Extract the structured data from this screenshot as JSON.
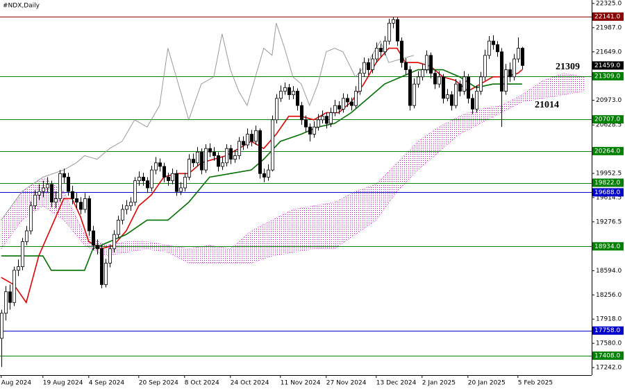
{
  "chart_data": {
    "type": "candlestick",
    "title": "#NDX,Daily",
    "x": [
      0,
      1,
      2,
      3,
      4,
      5,
      6,
      7,
      8,
      9,
      10,
      11,
      12,
      13,
      14,
      15,
      16,
      17,
      18,
      19,
      20,
      21,
      22,
      23,
      24,
      25,
      26,
      27,
      28,
      29,
      30,
      31,
      32,
      33,
      34,
      35,
      36,
      37,
      38,
      39,
      40,
      41,
      42,
      43,
      44,
      45,
      46,
      47,
      48,
      49,
      50,
      51,
      52,
      53,
      54,
      55,
      56,
      57,
      58,
      59,
      60,
      61,
      62,
      63,
      64,
      65,
      66,
      67,
      68,
      69,
      70,
      71,
      72,
      73,
      74,
      75,
      76,
      77,
      78,
      79,
      80,
      81,
      82,
      83,
      84,
      85,
      86,
      87,
      88,
      89,
      90,
      91,
      92,
      93,
      94,
      95,
      96,
      97,
      98,
      99,
      100,
      101,
      102,
      103,
      104,
      105,
      106,
      107,
      108,
      109,
      110,
      111,
      112,
      113,
      114,
      115,
      116,
      117,
      118,
      119,
      120,
      121,
      122,
      123,
      124,
      125
    ],
    "open": [
      17650,
      18000,
      18300,
      18150,
      18600,
      18650,
      19000,
      19150,
      19500,
      19650,
      19700,
      19750,
      19800,
      19550,
      19600,
      19950,
      19900,
      19700,
      19600,
      19550,
      19450,
      19600,
      19150,
      18950,
      18900,
      18400,
      18700,
      18900,
      19100,
      19300,
      19450,
      19500,
      19550,
      19850,
      19900,
      19850,
      19750,
      20000,
      20100,
      20050,
      19900,
      19850,
      19950,
      19700,
      19750,
      19900,
      20150,
      20100,
      20250,
      20000,
      20300,
      20250,
      20200,
      20050,
      20100,
      20300,
      20150,
      20200,
      20400,
      20350,
      20500,
      20400,
      20550,
      19950,
      19900,
      20000,
      20700,
      21000,
      21100,
      21150,
      21050,
      21100,
      20900,
      20700,
      20600,
      20500,
      20600,
      20700,
      20750,
      20650,
      20800,
      20900,
      20850,
      21000,
      20950,
      20900,
      21100,
      21350,
      21500,
      21400,
      21550,
      21700,
      21650,
      21800,
      22050,
      22100,
      21800,
      21500,
      21400,
      20900,
      21200,
      21300,
      21400,
      21600,
      21350,
      21200,
      21300,
      21000,
      21050,
      20900,
      21200,
      21100,
      21300,
      21000,
      20850,
      21100,
      21300,
      21600,
      21800,
      21750,
      21650,
      21100,
      21400,
      21300,
      21550,
      21700
    ],
    "high": [
      18050,
      18380,
      18400,
      18650,
      18750,
      19050,
      19220,
      19560,
      19720,
      19800,
      19850,
      19900,
      19850,
      19700,
      20000,
      20020,
      19960,
      19780,
      19680,
      19620,
      19680,
      19640,
      19220,
      19030,
      18950,
      18760,
      18960,
      19160,
      19360,
      19520,
      19580,
      19620,
      19900,
      19980,
      19960,
      19900,
      20060,
      20180,
      20160,
      20100,
      19960,
      20020,
      20000,
      19830,
      19960,
      20220,
      20230,
      20320,
      20300,
      20360,
      20370,
      20320,
      20250,
      20180,
      20360,
      20350,
      20280,
      20460,
      20470,
      20580,
      20560,
      20620,
      20580,
      20020,
      20080,
      20760,
      21060,
      21180,
      21220,
      21200,
      21170,
      21140,
      20950,
      20760,
      20650,
      20680,
      20780,
      20830,
      20800,
      20870,
      20980,
      20960,
      21070,
      21060,
      21010,
      21170,
      21420,
      21570,
      21560,
      21620,
      21780,
      21760,
      21870,
      22110,
      22140,
      22130,
      21850,
      21560,
      21450,
      21280,
      21380,
      21480,
      21670,
      21640,
      21400,
      21380,
      21340,
      21130,
      21100,
      21270,
      21250,
      21380,
      21340,
      21060,
      21180,
      21370,
      21680,
      21870,
      21880,
      21800,
      21700,
      21480,
      21500,
      21620,
      21850,
      21720
    ],
    "low": [
      17250,
      17900,
      18050,
      18100,
      18520,
      18600,
      18950,
      19100,
      19450,
      19580,
      19620,
      19680,
      19480,
      19470,
      19560,
      19820,
      19640,
      19520,
      19470,
      19380,
      19400,
      19080,
      18880,
      18820,
      18350,
      18360,
      18640,
      18850,
      19050,
      19240,
      19380,
      19430,
      19500,
      19780,
      19780,
      19680,
      19700,
      19940,
      19980,
      19830,
      19780,
      19800,
      19640,
      19650,
      19700,
      19860,
      20040,
      20050,
      19940,
      19960,
      20180,
      20130,
      19980,
      20000,
      20050,
      20080,
      20100,
      20150,
      20280,
      20300,
      20330,
      20350,
      19880,
      19830,
      19850,
      19980,
      20650,
      20950,
      21050,
      20980,
      20990,
      20830,
      20630,
      20530,
      20400,
      20450,
      20550,
      20650,
      20580,
      20600,
      20750,
      20780,
      20800,
      20880,
      20830,
      20860,
      21050,
      21300,
      21330,
      21350,
      21500,
      21580,
      21600,
      21750,
      21980,
      21730,
      21430,
      21330,
      20830,
      20860,
      21150,
      21250,
      21350,
      21280,
      21130,
      21150,
      20930,
      20960,
      20830,
      20860,
      21030,
      21050,
      20930,
      20780,
      20800,
      21050,
      21250,
      21550,
      21680,
      21580,
      20600,
      21050,
      21230,
      21250,
      21500,
      21400
    ],
    "close": [
      18000,
      18300,
      18150,
      18600,
      18650,
      19000,
      19150,
      19500,
      19650,
      19700,
      19750,
      19800,
      19550,
      19600,
      19950,
      19900,
      19700,
      19600,
      19550,
      19450,
      19600,
      19150,
      18950,
      18900,
      18400,
      18700,
      18900,
      19100,
      19300,
      19450,
      19500,
      19550,
      19850,
      19900,
      19850,
      19750,
      20000,
      20100,
      20050,
      19900,
      19850,
      19950,
      19700,
      19750,
      19900,
      20150,
      20100,
      20250,
      20000,
      20300,
      20250,
      20200,
      20050,
      20100,
      20300,
      20150,
      20200,
      20400,
      20350,
      20500,
      20400,
      20550,
      19950,
      19900,
      20000,
      20700,
      21000,
      21100,
      21150,
      21050,
      21100,
      20900,
      20700,
      20600,
      20500,
      20600,
      20700,
      20750,
      20650,
      20800,
      20900,
      20850,
      21000,
      20950,
      20900,
      21100,
      21350,
      21500,
      21400,
      21550,
      21700,
      21650,
      21800,
      22050,
      22100,
      21800,
      21500,
      21400,
      20900,
      21200,
      21300,
      21400,
      21600,
      21350,
      21200,
      21300,
      21000,
      21050,
      20900,
      21200,
      21100,
      21300,
      21000,
      20850,
      21100,
      21300,
      21600,
      21800,
      21750,
      21650,
      21100,
      21400,
      21300,
      21550,
      21700,
      21459
    ],
    "up_color": "#ffffff",
    "down_color": "#000000",
    "wick_color": "#000000",
    "xlim": [
      -0.3,
      141.7
    ],
    "ylim": [
      17136,
      22373
    ],
    "xticks": [
      {
        "value": 0,
        "label": "Aug 2024"
      },
      {
        "value": 10,
        "label": "19 Aug 2024"
      },
      {
        "value": 21,
        "label": "4 Sep 2024"
      },
      {
        "value": 33,
        "label": "20 Sep 2024"
      },
      {
        "value": 44,
        "label": "8 Oct 2024"
      },
      {
        "value": 55,
        "label": "24 Oct 2024"
      },
      {
        "value": 67,
        "label": "11 Nov 2024"
      },
      {
        "value": 78,
        "label": "27 Nov 2024"
      },
      {
        "value": 90,
        "label": "13 Dec 2024"
      },
      {
        "value": 101,
        "label": "2 Jan 2025"
      },
      {
        "value": 112,
        "label": "20 Jan 2025"
      },
      {
        "value": 124,
        "label": "5 Feb 2025"
      }
    ],
    "yticks": [
      {
        "value": 22325,
        "label": "22325.0"
      },
      {
        "value": 21987,
        "label": "21987.0"
      },
      {
        "value": 21649,
        "label": "21649.0"
      },
      {
        "value": 20973,
        "label": "20973.0"
      },
      {
        "value": 20628.5,
        "label": "20628.5"
      },
      {
        "value": 19952.5,
        "label": "19952.5"
      },
      {
        "value": 19614.5,
        "label": "19614.5"
      },
      {
        "value": 19276.5,
        "label": "19276.5"
      },
      {
        "value": 18594,
        "label": "18594.0"
      },
      {
        "value": 18256,
        "label": "18256.0"
      },
      {
        "value": 17918,
        "label": "17918.0"
      },
      {
        "value": 17580,
        "label": "17580.0"
      },
      {
        "value": 17242,
        "label": "17242.0"
      }
    ],
    "levels": [
      {
        "value": 22141,
        "label": "22141.0",
        "color": "#8b0000"
      },
      {
        "value": 21309,
        "label": "21309.0",
        "color": "#008000"
      },
      {
        "value": 20707,
        "label": "20707.0",
        "color": "#008000"
      },
      {
        "value": 20264,
        "label": "20264.0",
        "color": "#008000"
      },
      {
        "value": 19822,
        "label": "19822.0",
        "color": "#008000"
      },
      {
        "value": 19688,
        "label": "19688.0",
        "color": "#0000cc"
      },
      {
        "value": 18934,
        "label": "18934.0",
        "color": "#008000"
      },
      {
        "value": 17758,
        "label": "17758.0",
        "color": "#0000cc"
      },
      {
        "value": 17408,
        "label": "17408.0",
        "color": "#008000"
      }
    ],
    "current_price": {
      "value": 21459,
      "label": "21459.0",
      "color": "#000000"
    },
    "annotations": [
      "21309",
      "21014"
    ],
    "cloud": {
      "color": "#d000d0",
      "x": [
        0,
        5,
        10,
        15,
        20,
        25,
        30,
        35,
        40,
        45,
        50,
        55,
        60,
        65,
        70,
        75,
        80,
        85,
        90,
        95,
        100,
        105,
        110,
        115,
        120,
        125,
        130,
        135,
        140
      ],
      "span_a": [
        19300,
        19700,
        19900,
        19700,
        19100,
        18950,
        19000,
        19000,
        18950,
        18900,
        18950,
        18900,
        19150,
        19300,
        19450,
        19500,
        19550,
        19700,
        19800,
        20100,
        20400,
        20600,
        20750,
        20850,
        20900,
        21050,
        21250,
        21350,
        21300
      ],
      "span_b": [
        18900,
        19300,
        19500,
        19300,
        18950,
        18800,
        18850,
        18900,
        18850,
        18700,
        18700,
        18700,
        18700,
        18800,
        18850,
        18900,
        18900,
        19100,
        19300,
        19700,
        20000,
        20250,
        20500,
        20650,
        20800,
        20950,
        21000,
        21050,
        21100
      ]
    },
    "lines": [
      {
        "color": "#999999",
        "x": [
          0,
          5,
          10,
          15,
          18,
          20,
          23,
          26,
          29,
          32,
          35,
          38,
          40,
          42,
          45,
          48,
          51,
          53,
          55,
          57,
          59,
          61,
          63,
          65,
          66,
          68,
          70,
          72,
          74,
          76,
          78,
          80,
          82,
          85,
          88,
          91,
          93,
          96,
          99
        ],
        "values": [
          19300,
          19700,
          19900,
          20000,
          20100,
          20200,
          20150,
          20300,
          20400,
          20700,
          20600,
          20900,
          21700,
          21300,
          20700,
          21200,
          21300,
          21900,
          21400,
          21100,
          20900,
          21300,
          21700,
          21600,
          22050,
          21700,
          21300,
          21200,
          20900,
          21200,
          21650,
          21700,
          21650,
          21300,
          21500,
          21800,
          21500,
          21550,
          21600
        ]
      },
      {
        "color": "#e00000",
        "x": [
          0,
          3,
          6,
          9,
          12,
          15,
          17,
          19,
          21,
          24,
          27,
          30,
          33,
          36,
          39,
          42,
          45,
          48,
          51,
          54,
          57,
          60,
          63,
          66,
          69,
          72,
          75,
          78,
          81,
          84,
          87,
          90,
          93,
          95,
          97,
          100,
          103,
          106,
          109,
          112,
          115,
          118,
          121,
          124,
          125
        ],
        "values": [
          18500,
          18400,
          18150,
          18800,
          19200,
          19600,
          19600,
          19350,
          19000,
          18900,
          18950,
          19150,
          19500,
          19650,
          19900,
          19950,
          19950,
          20100,
          20150,
          20200,
          20300,
          20400,
          20300,
          20500,
          20750,
          20750,
          20700,
          20800,
          20800,
          20950,
          21200,
          21500,
          21700,
          21700,
          21500,
          21500,
          21450,
          21300,
          21250,
          21100,
          21200,
          21300,
          21300,
          21350,
          21400
        ]
      },
      {
        "color": "#007000",
        "x": [
          0,
          10,
          12,
          20,
          22,
          30,
          35,
          40,
          45,
          50,
          55,
          60,
          63,
          67,
          72,
          76,
          80,
          84,
          88,
          92,
          96,
          100,
          106,
          110,
          114,
          118,
          125
        ],
        "values": [
          18800,
          18800,
          18600,
          18600,
          18900,
          19100,
          19300,
          19300,
          19550,
          19900,
          19950,
          20000,
          20150,
          20400,
          20500,
          20600,
          20650,
          20800,
          21000,
          21200,
          21300,
          21400,
          21400,
          21300,
          21150,
          21200,
          21200
        ]
      }
    ]
  }
}
